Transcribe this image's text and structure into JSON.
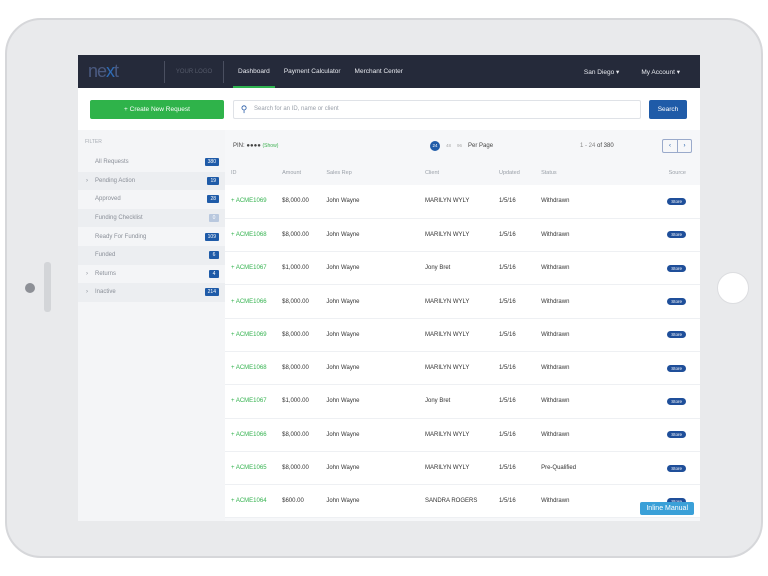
{
  "header": {
    "logo": "next",
    "your_logo": "YOUR LOGO",
    "nav": [
      "Dashboard",
      "Payment Calculator",
      "Merchant Center"
    ],
    "location": "San Diego",
    "account": "My Account"
  },
  "toolbar": {
    "create_label": "+ Create New Request",
    "search_placeholder": "Search for an ID, name or client",
    "search_label": "Search"
  },
  "sidebar": {
    "filter_label": "FILTER",
    "items": [
      {
        "label": "All Requests",
        "count": "380",
        "expandable": false
      },
      {
        "label": "Pending Action",
        "count": "19",
        "expandable": true
      },
      {
        "label": "Approved",
        "count": "28",
        "expandable": false
      },
      {
        "label": "Funding Checklist",
        "count": "0",
        "expandable": false
      },
      {
        "label": "Ready For Funding",
        "count": "109",
        "expandable": false
      },
      {
        "label": "Funded",
        "count": "6",
        "expandable": false
      },
      {
        "label": "Returns",
        "count": "4",
        "expandable": true
      },
      {
        "label": "Inactive",
        "count": "214",
        "expandable": true
      }
    ]
  },
  "listing": {
    "pin_label": "PIN: ●●●●",
    "pin_show": "(Show)",
    "per_page_options": [
      "24",
      "48",
      "96"
    ],
    "per_page_label": "Per Page",
    "range": "1 - 24",
    "total": "of 380",
    "prev": "‹",
    "next": "›"
  },
  "table": {
    "columns": [
      "ID",
      "Amount",
      "Sales Rep",
      "Client",
      "Updated",
      "Status",
      "Source"
    ],
    "rows": [
      [
        "ACME1069",
        "$8,000.00",
        "John Wayne",
        "MARILYN WYLY",
        "1/5/16",
        "Withdrawn",
        "Store"
      ],
      [
        "ACME1068",
        "$8,000.00",
        "John Wayne",
        "MARILYN WYLY",
        "1/5/16",
        "Withdrawn",
        "Store"
      ],
      [
        "ACME1067",
        "$1,000.00",
        "John Wayne",
        "Jony Bret",
        "1/5/16",
        "Withdrawn",
        "Store"
      ],
      [
        "ACME1066",
        "$8,000.00",
        "John Wayne",
        "MARILYN WYLY",
        "1/5/16",
        "Withdrawn",
        "Store"
      ],
      [
        "ACME1069",
        "$8,000.00",
        "John Wayne",
        "MARILYN WYLY",
        "1/5/16",
        "Withdrawn",
        "Store"
      ],
      [
        "ACME1068",
        "$8,000.00",
        "John Wayne",
        "MARILYN WYLY",
        "1/5/16",
        "Withdrawn",
        "Store"
      ],
      [
        "ACME1067",
        "$1,000.00",
        "John Wayne",
        "Jony Bret",
        "1/5/16",
        "Withdrawn",
        "Store"
      ],
      [
        "ACME1066",
        "$8,000.00",
        "John Wayne",
        "MARILYN WYLY",
        "1/5/16",
        "Withdrawn",
        "Store"
      ],
      [
        "ACME1065",
        "$8,000.00",
        "John Wayne",
        "MARILYN WYLY",
        "1/5/16",
        "Pre-Qualified",
        "Store"
      ],
      [
        "ACME1064",
        "$600.00",
        "John Wayne",
        "SANDRA ROGERS",
        "1/5/16",
        "Withdrawn",
        "Store"
      ]
    ]
  },
  "inline_manual": "Inline Manual",
  "colors": {
    "header": "#252a3a",
    "accent_green": "#2fb34a",
    "primary_blue": "#1f5ba8"
  }
}
